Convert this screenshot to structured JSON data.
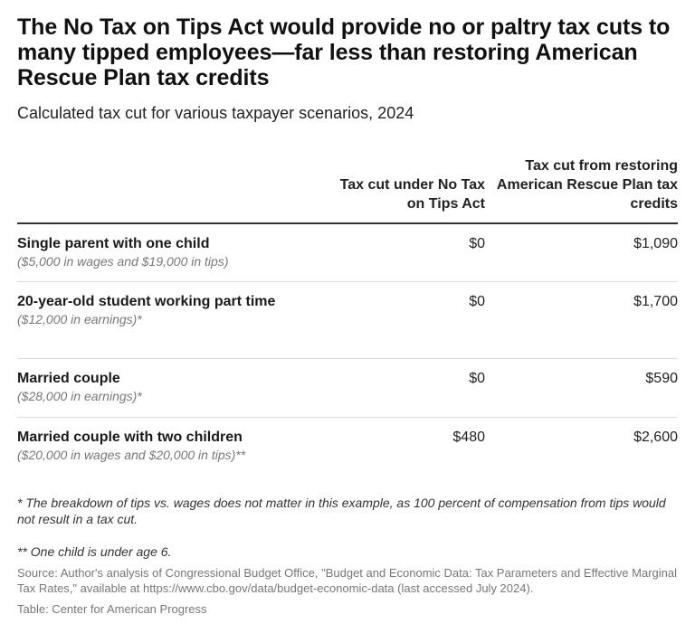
{
  "title": "The No Tax on Tips Act would provide no or paltry tax cuts to many tipped employees—far less than restoring American Rescue Plan tax credits",
  "subtitle": "Calculated tax cut for various taxpayer scenarios, 2024",
  "chart_data": {
    "type": "table",
    "columns": [
      "Tax cut under No Tax on Tips Act",
      "Tax cut from restoring American Rescue Plan tax credits"
    ],
    "rows": [
      {
        "label": "Single parent with one child",
        "note": "($5,000 in wages and $19,000 in tips)",
        "values": [
          "$0",
          "$1,090"
        ]
      },
      {
        "label": "20-year-old student working part time",
        "note": "($12,000 in earnings)*",
        "values": [
          "$0",
          "$1,700"
        ]
      },
      {
        "label": "Married couple",
        "note": "($28,000 in earnings)*",
        "values": [
          "$0",
          "$590"
        ]
      },
      {
        "label": "Married couple with two children",
        "note": "($20,000 in wages and $20,000 in tips)**",
        "values": [
          "$480",
          "$2,600"
        ]
      }
    ]
  },
  "footnotes": [
    "* The breakdown of tips vs. wages does not matter in this example, as 100 percent of compensation from tips would not result in a tax cut.",
    "** One child is under age 6."
  ],
  "source": "Source: Author's analysis of Congressional Budget Office, \"Budget and Economic Data: Tax Parameters and Effective Marginal Tax Rates,\" available at https://www.cbo.gov/data/budget-economic-data (last accessed July 2024).",
  "credit": "Table: Center for American Progress"
}
